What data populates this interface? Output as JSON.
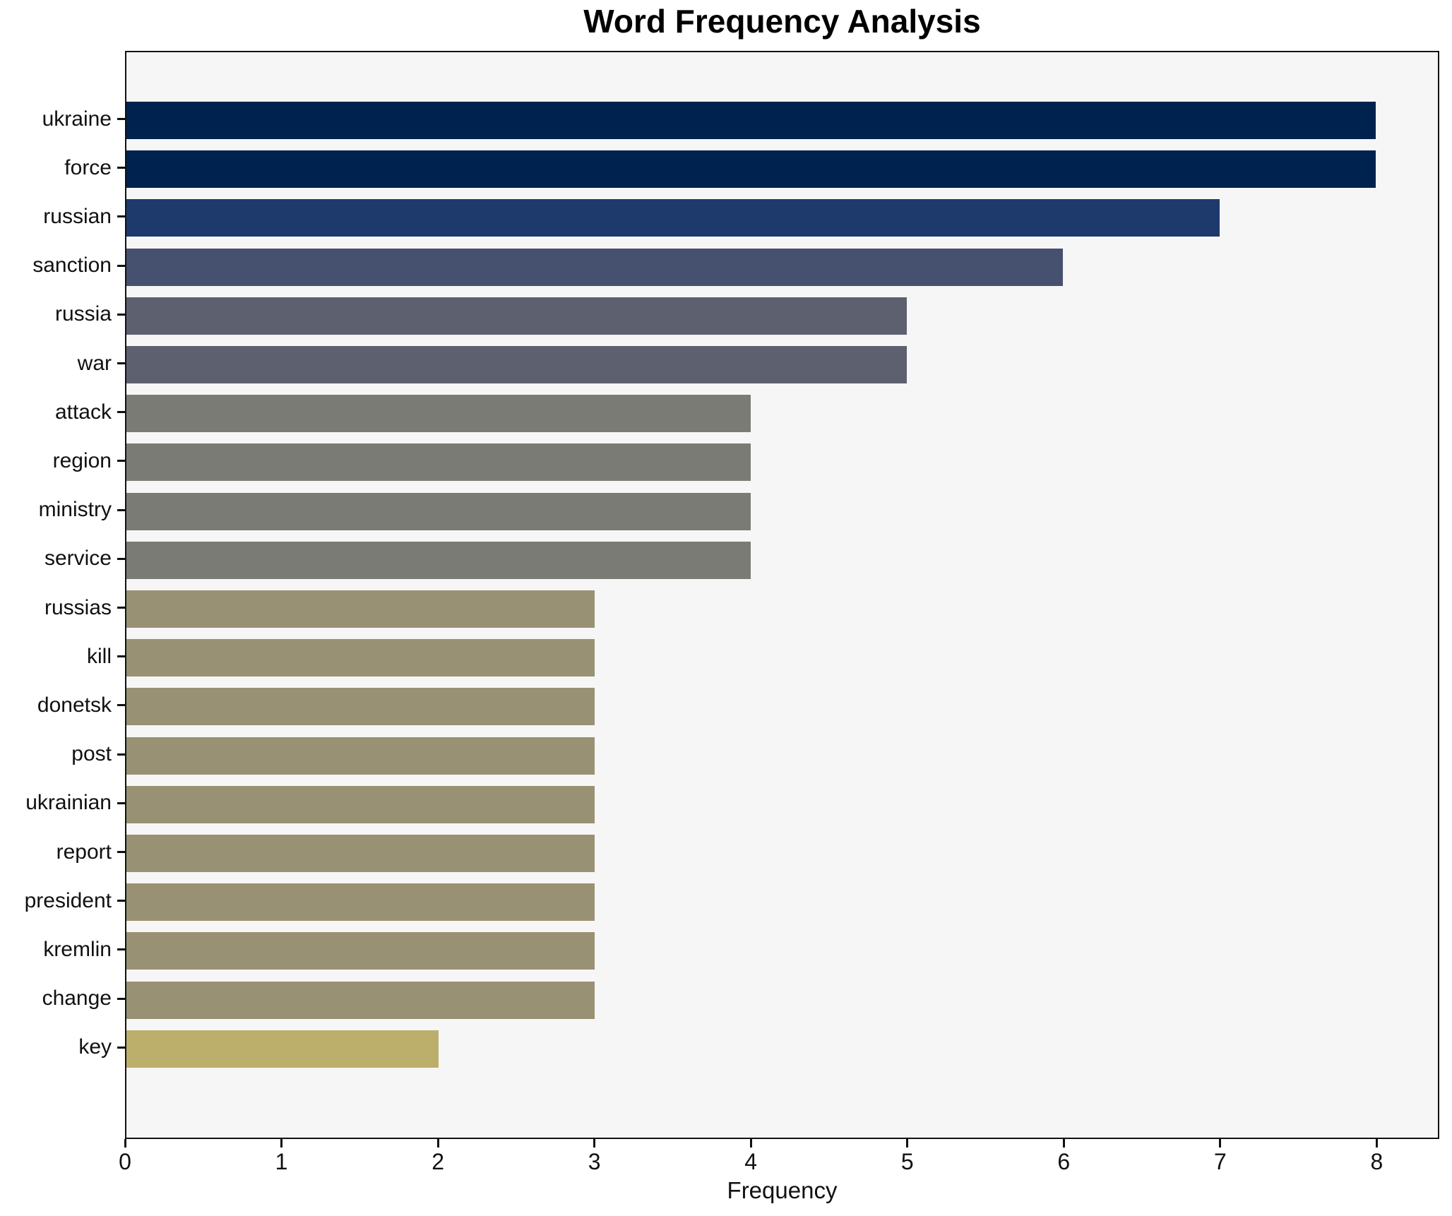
{
  "chart_data": {
    "type": "bar",
    "orientation": "horizontal",
    "title": "Word Frequency Analysis",
    "xlabel": "Frequency",
    "ylabel": "",
    "categories": [
      "ukraine",
      "force",
      "russian",
      "sanction",
      "russia",
      "war",
      "attack",
      "region",
      "ministry",
      "service",
      "russias",
      "kill",
      "donetsk",
      "post",
      "ukrainian",
      "report",
      "president",
      "kremlin",
      "change",
      "key"
    ],
    "values": [
      8,
      8,
      7,
      6,
      5,
      5,
      4,
      4,
      4,
      4,
      3,
      3,
      3,
      3,
      3,
      3,
      3,
      3,
      3,
      2
    ],
    "bar_colors": [
      "#00224e",
      "#00224e",
      "#1e3a6d",
      "#46506f",
      "#5d616f",
      "#5d616f",
      "#7b7b76",
      "#7b7b76",
      "#7b7b76",
      "#7b7b76",
      "#999173",
      "#999173",
      "#999173",
      "#999173",
      "#999173",
      "#999173",
      "#999173",
      "#999173",
      "#999173",
      "#bcae6b"
    ],
    "x_ticks": [
      "0",
      "1",
      "2",
      "3",
      "4",
      "5",
      "6",
      "7",
      "8"
    ],
    "xlim": [
      0,
      8.4
    ],
    "grid": false,
    "legend": false,
    "plot_background": "#f6f6f6",
    "figure_background": "#ffffff",
    "text_color": "#111111"
  }
}
